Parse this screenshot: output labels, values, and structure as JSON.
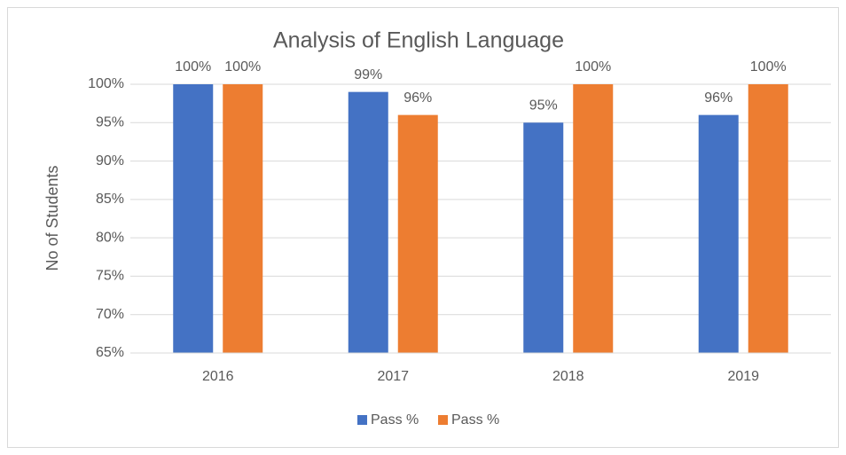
{
  "chart_data": {
    "type": "bar",
    "title": "Analysis of English Language",
    "y_label": "No of Students",
    "categories": [
      "2016",
      "2017",
      "2018",
      "2019"
    ],
    "series": [
      {
        "name": "Pass %",
        "color": "#4472c4",
        "values": [
          100,
          99,
          95,
          96
        ],
        "value_labels": [
          "100%",
          "99%",
          "95%",
          "96%"
        ]
      },
      {
        "name": "Pass %",
        "color": "#ed7d31",
        "values": [
          100,
          96,
          100,
          100
        ],
        "value_labels": [
          "100%",
          "96%",
          "100%",
          "100%"
        ]
      }
    ],
    "ylim": [
      65,
      100
    ],
    "yticks": [
      {
        "value": 65,
        "label": "65%"
      },
      {
        "value": 70,
        "label": "70%"
      },
      {
        "value": 75,
        "label": "75%"
      },
      {
        "value": 80,
        "label": "80%"
      },
      {
        "value": 85,
        "label": "85%"
      },
      {
        "value": 90,
        "label": "90%"
      },
      {
        "value": 95,
        "label": "95%"
      },
      {
        "value": 100,
        "label": "100%"
      }
    ],
    "grid": true,
    "legend": "bottom"
  }
}
